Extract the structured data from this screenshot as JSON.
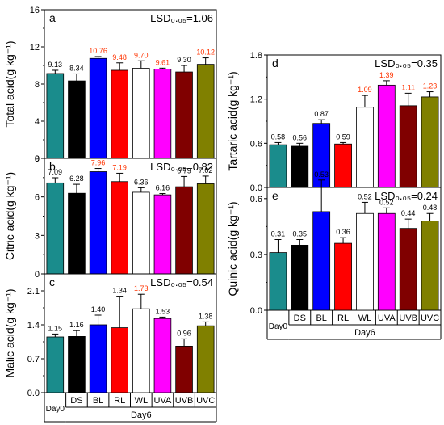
{
  "figure": {
    "colors": [
      "#1a8c8c",
      "#000000",
      "#0000ff",
      "#ff0000",
      "#ffffff",
      "#ff00ff",
      "#800000",
      "#808000"
    ],
    "highlight_color": "#ff3300",
    "x_group_day0": "Day0",
    "x_group_day6": "Day6"
  },
  "chart_data": [
    {
      "id": "a",
      "type": "bar",
      "panel_letter": "a",
      "title": "",
      "xlabel": "",
      "ylabel": "Total acid(g kg⁻¹)",
      "lsd": "LSD₀.₀₅=1.06",
      "categories": [
        "Day0",
        "DS",
        "BL",
        "RL",
        "WL",
        "UVA",
        "UVB",
        "UVC"
      ],
      "values": [
        9.13,
        8.34,
        10.76,
        9.48,
        9.7,
        9.61,
        9.3,
        10.12
      ],
      "errors": [
        0.35,
        0.75,
        0.2,
        0.8,
        0.8,
        0.1,
        0.7,
        0.7
      ],
      "labels": [
        "9.13",
        "8.34",
        "10.76",
        "9.48",
        "9.70",
        "9.61",
        "9.30",
        "10.12"
      ],
      "highlight": [
        false,
        false,
        true,
        true,
        true,
        true,
        false,
        true
      ],
      "ylim": [
        0,
        16
      ],
      "yticks": [
        0,
        4,
        8,
        12,
        16
      ],
      "ytick_labels": [
        "0",
        "4",
        "8",
        "12",
        "16"
      ]
    },
    {
      "id": "b",
      "type": "bar",
      "panel_letter": "b",
      "title": "",
      "xlabel": "",
      "ylabel": "Citric acid(g kg⁻¹)",
      "lsd": "LSD₀.₀₅=0.82",
      "categories": [
        "Day0",
        "DS",
        "BL",
        "RL",
        "WL",
        "UVA",
        "UVB",
        "UVC"
      ],
      "values": [
        7.09,
        6.28,
        7.96,
        7.19,
        6.36,
        6.16,
        6.79,
        7.02
      ],
      "errors": [
        0.4,
        0.7,
        0.25,
        0.65,
        0.35,
        0.1,
        0.8,
        0.6
      ],
      "labels": [
        "7.09",
        "6.28",
        "7.96",
        "7.19",
        "6.36",
        "6.16",
        "6.79",
        "7.02"
      ],
      "highlight": [
        false,
        false,
        true,
        true,
        false,
        false,
        false,
        false
      ],
      "ylim": [
        0,
        9
      ],
      "yticks": [
        0,
        3,
        6,
        9
      ],
      "ytick_labels": [
        "0",
        "3",
        "6",
        "9"
      ]
    },
    {
      "id": "c",
      "type": "bar",
      "panel_letter": "c",
      "title": "",
      "xlabel": "",
      "ylabel": "Malic acid(g kg⁻¹)",
      "lsd": "LSD₀.₀₅=0.54",
      "categories": [
        "Day0",
        "DS",
        "BL",
        "RL",
        "WL",
        "UVA",
        "UVB",
        "UVC"
      ],
      "values": [
        1.15,
        1.16,
        1.4,
        1.34,
        1.73,
        1.53,
        0.96,
        1.38
      ],
      "errors": [
        0.06,
        0.12,
        0.2,
        0.65,
        0.3,
        0.03,
        0.15,
        0.08
      ],
      "labels": [
        "1.15",
        "1.16",
        "1.40",
        "1.34",
        "1.73",
        "1.53",
        "0.96",
        "1.38"
      ],
      "highlight": [
        false,
        false,
        false,
        false,
        true,
        false,
        false,
        false
      ],
      "ylim": [
        0,
        2.45
      ],
      "yticks": [
        0,
        0.7,
        1.4,
        2.1
      ],
      "ytick_labels": [
        "0.0",
        "0.7",
        "1.4",
        "2.1"
      ]
    },
    {
      "id": "d",
      "type": "bar",
      "panel_letter": "d",
      "title": "",
      "xlabel": "",
      "ylabel": "Tartaric acid(g kg⁻¹)",
      "lsd": "LSD₀.₀₅=0.35",
      "categories": [
        "Day0",
        "DS",
        "BL",
        "RL",
        "WL",
        "UVA",
        "UVB",
        "UVC"
      ],
      "values": [
        0.58,
        0.56,
        0.87,
        0.59,
        1.09,
        1.39,
        1.11,
        1.23
      ],
      "errors": [
        0.03,
        0.04,
        0.05,
        0.02,
        0.16,
        0.06,
        0.17,
        0.07
      ],
      "labels": [
        "0.58",
        "0.56",
        "0.87",
        "0.59",
        "1.09",
        "1.39",
        "1.11",
        "1.23"
      ],
      "highlight": [
        false,
        false,
        false,
        false,
        true,
        true,
        true,
        true
      ],
      "ylim": [
        0,
        1.8
      ],
      "yticks": [
        0,
        0.6,
        1.2,
        1.8
      ],
      "ytick_labels": [
        "0.0",
        "0.6",
        "1.2",
        "1.8"
      ]
    },
    {
      "id": "e",
      "type": "bar",
      "panel_letter": "e",
      "title": "",
      "xlabel": "",
      "ylabel": "Quinic acid(g kg⁻¹)",
      "lsd": "LSD₀.₀₅=0.24",
      "categories": [
        "Day0",
        "DS",
        "BL",
        "RL",
        "WL",
        "UVA",
        "UVB",
        "UVC"
      ],
      "values": [
        0.31,
        0.35,
        0.53,
        0.36,
        0.52,
        0.52,
        0.44,
        0.48
      ],
      "errors": [
        0.07,
        0.03,
        0.17,
        0.03,
        0.06,
        0.03,
        0.05,
        0.04
      ],
      "labels": [
        "0.31",
        "0.35",
        "0.53",
        "0.36",
        "0.52",
        "0.52",
        "0.44",
        "0.48"
      ],
      "highlight": [
        false,
        false,
        false,
        false,
        false,
        false,
        false,
        false
      ],
      "ylim": [
        0,
        0.66
      ],
      "yticks": [
        0,
        0.3,
        0.6
      ],
      "ytick_labels": [
        "0.0",
        "0.3",
        "0.6"
      ]
    }
  ]
}
